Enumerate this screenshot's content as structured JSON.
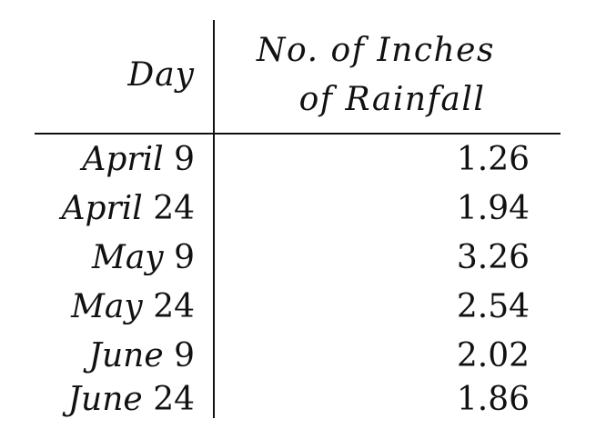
{
  "table": {
    "header": {
      "day": "Day",
      "rain_line1": "No. of Inches",
      "rain_line2": "of Rainfall"
    },
    "rows": [
      {
        "month": "April",
        "date": "9",
        "value": "1.26"
      },
      {
        "month": "April",
        "date": "24",
        "value": "1.94"
      },
      {
        "month": "May",
        "date": "9",
        "value": "3.26"
      },
      {
        "month": "May",
        "date": "24",
        "value": "2.54"
      },
      {
        "month": "June",
        "date": "9",
        "value": "2.02"
      },
      {
        "month": "June",
        "date": "24",
        "value": "1.86"
      }
    ]
  }
}
